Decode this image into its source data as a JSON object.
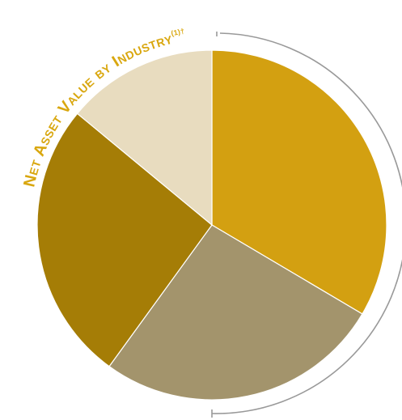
{
  "chart_data": {
    "type": "pie",
    "title": "Net Asset Value by Industry",
    "title_note": "(1)†",
    "slices": [
      {
        "value": 33.5,
        "color": "#d3a011"
      },
      {
        "value": 26.5,
        "color": "#a3946c"
      },
      {
        "value": 26.0,
        "color": "#a57d06"
      },
      {
        "value": 14.0,
        "color": "#e8dcbf"
      }
    ],
    "legend": "none"
  }
}
